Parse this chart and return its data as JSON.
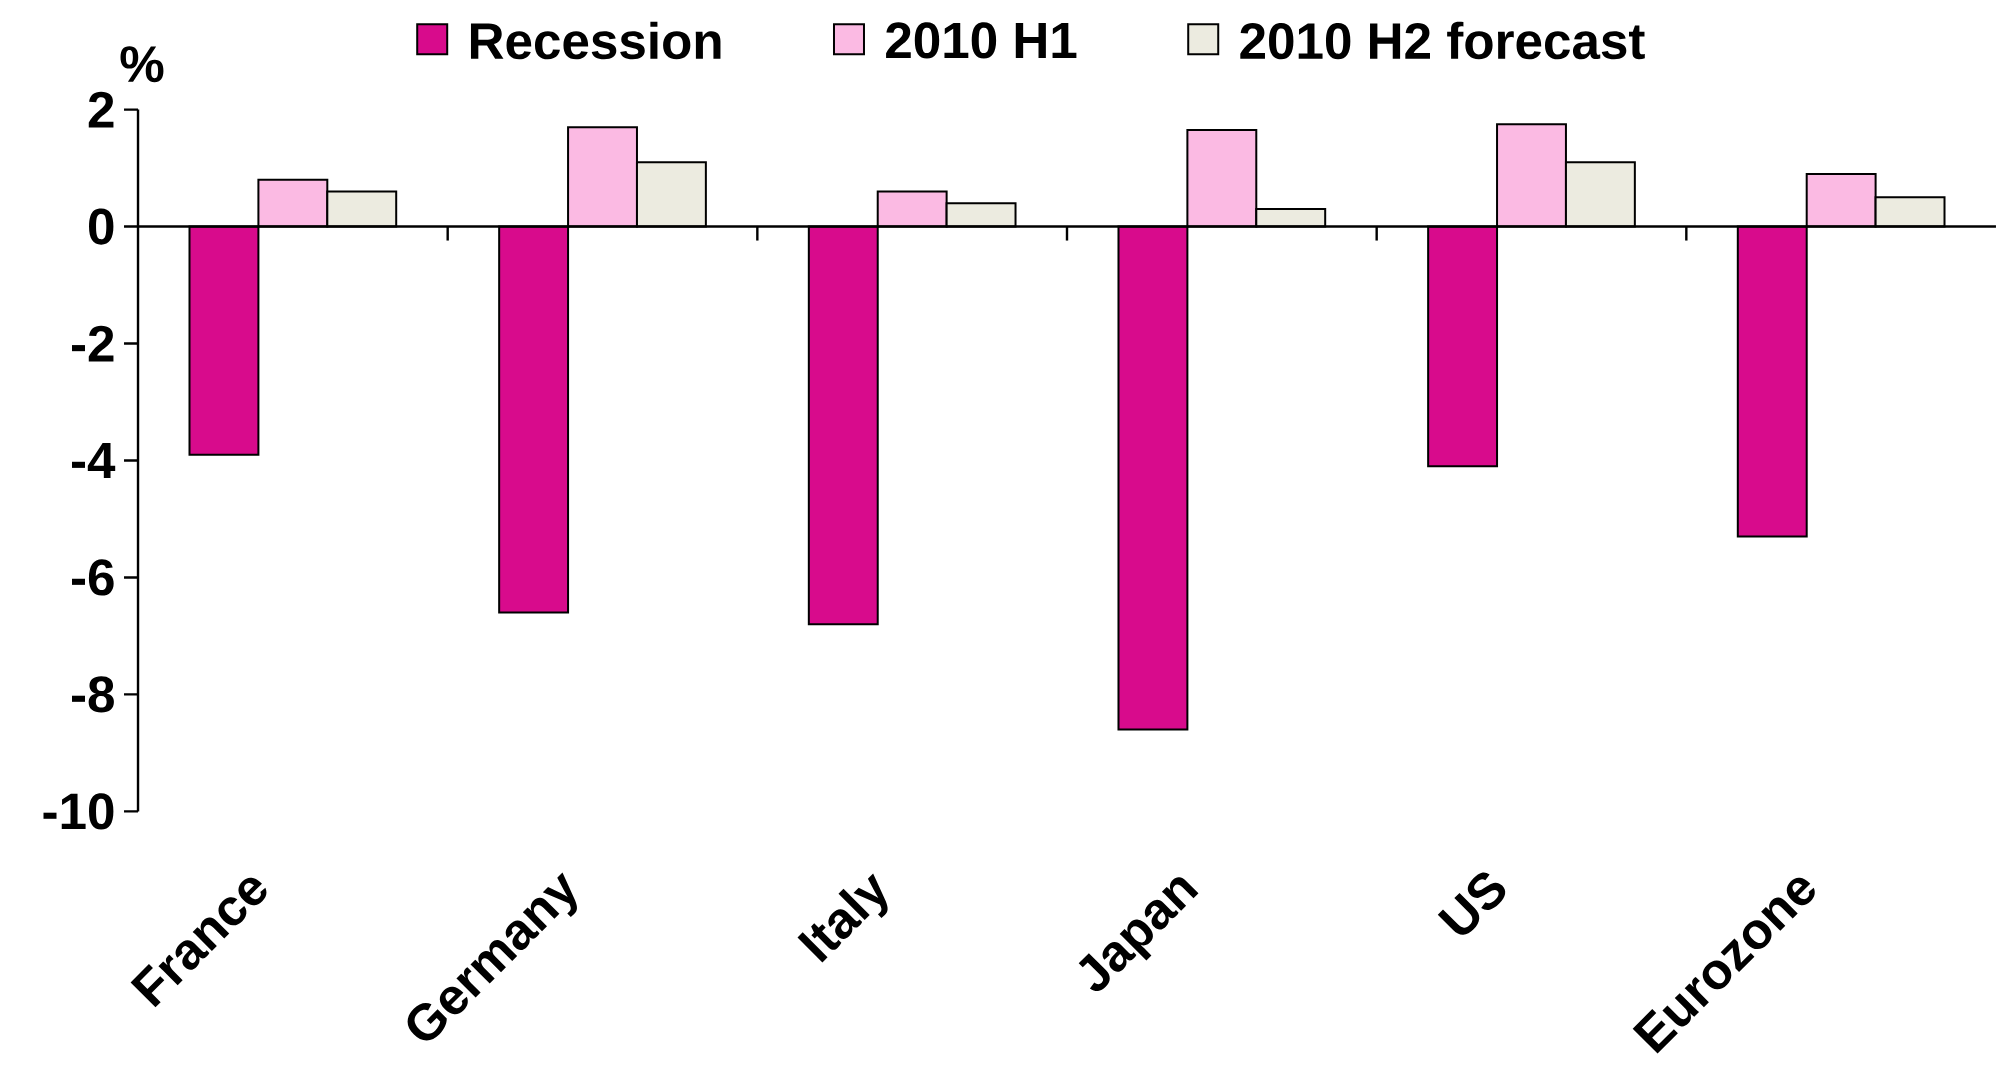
{
  "chart_data": {
    "type": "bar",
    "ylabel": "%",
    "categories": [
      "France",
      "Germany",
      "Italy",
      "Japan",
      "US",
      "Eurozone"
    ],
    "series": [
      {
        "name": "Recession",
        "color": "#d80b8c",
        "values": [
          -3.9,
          -6.6,
          -6.8,
          -8.6,
          -4.1,
          -5.3
        ]
      },
      {
        "name": "2010 H1",
        "color": "#fbbae3",
        "values": [
          0.8,
          1.7,
          0.6,
          1.65,
          1.75,
          0.9
        ]
      },
      {
        "name": "2010 H2 forecast",
        "color": "#ecebe0",
        "values": [
          0.6,
          1.1,
          0.4,
          0.3,
          1.1,
          0.5
        ]
      }
    ],
    "ylim": [
      -10,
      2
    ],
    "yticks": [
      -10,
      -8,
      -6,
      -4,
      -2,
      0,
      2
    ],
    "legend": "top"
  }
}
